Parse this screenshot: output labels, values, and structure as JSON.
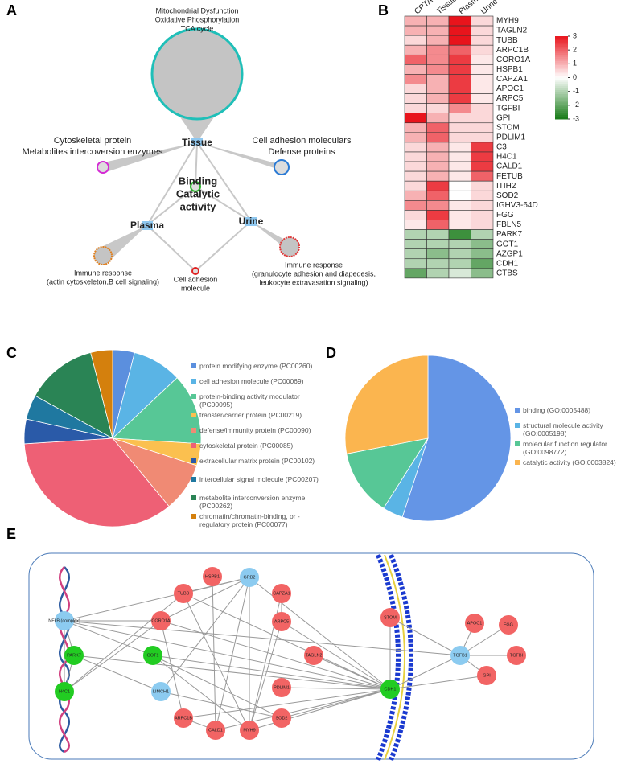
{
  "panel_labels": [
    "A",
    "B",
    "C",
    "D",
    "E"
  ],
  "diagram_a": {
    "top_cluster": [
      "Mitochondrial Dysfunction",
      "Oxidative Phosphorylation",
      "TCA cycle"
    ],
    "left_cluster": [
      "Cytoskeletal protein",
      "Metabolites intercoversion enzymes"
    ],
    "right_cluster": [
      "Cell adhesion moleculars",
      "Defense proteins"
    ],
    "center_cluster": [
      "Binding",
      "Catalytic",
      "activity"
    ],
    "hubs": [
      "Tissue",
      "Plasma",
      "Urine"
    ],
    "plasma_cluster": [
      "Immune response",
      "(actin cytoskeleton,B cell signaling)"
    ],
    "shared_cluster": [
      "Cell adhesion",
      "molecule"
    ],
    "urine_cluster": [
      "Immune response",
      "(granulocyte adhesion and diapedesis,",
      "leukocyte extravasation signaling)"
    ]
  },
  "chart_data": [
    {
      "type": "heatmap",
      "x": [
        "CPTAC",
        "Tissue",
        "Plasma",
        "Urine"
      ],
      "y": [
        "MYH9",
        "TAGLN2",
        "TUBB",
        "ARPC1B",
        "CORO1A",
        "HSPB1",
        "CAPZA1",
        "APOC1",
        "ARPC5",
        "TGFBI",
        "GPI",
        "STOM",
        "PDLIM1",
        "C3",
        "H4C1",
        "CALD1",
        "FETUB",
        "ITIH2",
        "SOD2",
        "IGHV3-64D",
        "FGG",
        "FBLN5",
        "PARK7",
        "GOT1",
        "AZGP1",
        "CDH1",
        "CTBS"
      ],
      "values": [
        [
          1,
          1,
          3,
          0.5
        ],
        [
          1,
          1,
          3,
          0.5
        ],
        [
          0.5,
          1,
          3,
          0.5
        ],
        [
          1,
          1.5,
          2,
          0.5
        ],
        [
          2,
          1.5,
          2.5,
          0.3
        ],
        [
          1,
          1.5,
          2.5,
          0.3
        ],
        [
          1.5,
          1,
          2.5,
          0.3
        ],
        [
          0.5,
          1,
          2.5,
          0.3
        ],
        [
          0.5,
          1,
          2.5,
          0.3
        ],
        [
          0.5,
          0.5,
          1.5,
          0.5
        ],
        [
          3,
          1,
          0.5,
          0.5
        ],
        [
          1,
          2,
          0.5,
          0.5
        ],
        [
          1,
          2,
          0.5,
          0.5
        ],
        [
          0.5,
          1,
          0.3,
          2.5
        ],
        [
          0.5,
          1,
          0.3,
          2.5
        ],
        [
          0.5,
          1,
          0.3,
          2.5
        ],
        [
          0.5,
          1,
          0.3,
          2
        ],
        [
          0.5,
          2.5,
          0,
          0.5
        ],
        [
          1,
          2,
          0,
          0.5
        ],
        [
          1.5,
          1.5,
          0.3,
          0.5
        ],
        [
          0.5,
          2.5,
          0.3,
          0.5
        ],
        [
          0.3,
          2,
          0.3,
          0.5
        ],
        [
          -1,
          -1,
          -2.5,
          -1
        ],
        [
          -1,
          -1,
          -1,
          -1.5
        ],
        [
          -1,
          -1.5,
          -1,
          -1.5
        ],
        [
          -1,
          -1,
          -1,
          -2
        ],
        [
          -2,
          -1,
          -0.5,
          -1.5
        ]
      ],
      "zlim": [
        -3,
        3
      ],
      "zticks": [
        3,
        2,
        1,
        0,
        -1,
        -2,
        -3
      ],
      "colors": [
        "#167a16",
        "#ffffff",
        "#e8141c"
      ]
    },
    {
      "type": "pie",
      "categories": [
        "protein modifying enzyme (PC00260)",
        "cell adhesion molecule (PC00069)",
        "protein-binding activity modulator (PC00095)",
        "transfer/carrier protein (PC00219)",
        "defense/immunity protein (PC00090)",
        "cytoskeletal protein (PC00085)",
        "extracellular matrix protein (PC00102)",
        "intercellular signal molecule (PC00207)",
        "metabolite interconversion enzyme (PC00262)",
        "chromatin/chromatin-binding, or -regulatory protein (PC00077)"
      ],
      "values": [
        4,
        9,
        13,
        4,
        9,
        35,
        4.5,
        4.5,
        13,
        4
      ],
      "colors": [
        "#5b8fde",
        "#5ab4e5",
        "#57c796",
        "#fbc04f",
        "#f08a74",
        "#ee6075",
        "#2a5aa8",
        "#1f78a0",
        "#2a8455",
        "#d4800d"
      ]
    },
    {
      "type": "pie",
      "categories": [
        "binding (GO:0005488)",
        "structural molecule activity (GO:0005198)",
        "molecular function regulator (GO:0098772)",
        "catalytic activity (GO:0003824)"
      ],
      "values": [
        55,
        4,
        13,
        28
      ],
      "colors": [
        "#6495e6",
        "#5ab4e5",
        "#57c796",
        "#fbb54f"
      ]
    }
  ],
  "network_e": {
    "nodes": [
      {
        "label": "NFkB (complex)",
        "color": "#8ccbf0"
      },
      {
        "label": "PARK7",
        "color": "#22cc22"
      },
      {
        "label": "H4C1",
        "color": "#22cc22"
      },
      {
        "label": "CORO1A",
        "color": "#f26464"
      },
      {
        "label": "TUBB",
        "color": "#f26464"
      },
      {
        "label": "HSPB1",
        "color": "#f26464"
      },
      {
        "label": "GRB2",
        "color": "#8ccbf0"
      },
      {
        "label": "CAPZA1",
        "color": "#f26464"
      },
      {
        "label": "ARPC5",
        "color": "#f26464"
      },
      {
        "label": "GOT1",
        "color": "#22cc22"
      },
      {
        "label": "TAGLN2",
        "color": "#f26464"
      },
      {
        "label": "LIMCH1",
        "color": "#8ccbf0"
      },
      {
        "label": "PDLIM1",
        "color": "#f26464"
      },
      {
        "label": "ARPC1B",
        "color": "#f26464"
      },
      {
        "label": "CALD1",
        "color": "#f26464"
      },
      {
        "label": "MYH9",
        "color": "#f26464"
      },
      {
        "label": "SOD2",
        "color": "#f26464"
      },
      {
        "label": "STOM",
        "color": "#f26464"
      },
      {
        "label": "CDH1",
        "color": "#22cc22"
      },
      {
        "label": "APOC1",
        "color": "#f26464"
      },
      {
        "label": "FGG",
        "color": "#f26464"
      },
      {
        "label": "TGFB1",
        "color": "#8ccbf0"
      },
      {
        "label": "TGFBI",
        "color": "#f26464"
      },
      {
        "label": "GPI",
        "color": "#f26464"
      }
    ],
    "edges": [
      [
        0,
        18
      ],
      [
        1,
        18
      ],
      [
        3,
        18
      ],
      [
        8,
        18
      ],
      [
        10,
        18
      ],
      [
        12,
        18
      ],
      [
        13,
        18
      ],
      [
        14,
        18
      ],
      [
        15,
        18
      ],
      [
        16,
        18
      ],
      [
        17,
        18
      ],
      [
        21,
        18
      ],
      [
        23,
        18
      ],
      [
        6,
        18
      ],
      [
        4,
        18
      ],
      [
        9,
        18
      ],
      [
        6,
        4
      ],
      [
        6,
        3
      ],
      [
        6,
        15
      ],
      [
        6,
        14
      ],
      [
        6,
        0
      ],
      [
        6,
        11
      ],
      [
        4,
        15
      ],
      [
        0,
        3
      ],
      [
        0,
        9
      ],
      [
        0,
        2
      ],
      [
        0,
        1
      ],
      [
        0,
        21
      ],
      [
        1,
        11
      ],
      [
        2,
        3
      ],
      [
        2,
        4
      ],
      [
        9,
        16
      ],
      [
        9,
        15
      ],
      [
        11,
        16
      ],
      [
        8,
        15
      ],
      [
        7,
        15
      ],
      [
        21,
        19
      ],
      [
        21,
        20
      ],
      [
        21,
        22
      ],
      [
        21,
        17
      ],
      [
        21,
        23
      ],
      [
        5,
        14
      ],
      [
        3,
        13
      ],
      [
        13,
        14
      ],
      [
        7,
        8
      ],
      [
        1,
        2
      ]
    ]
  }
}
